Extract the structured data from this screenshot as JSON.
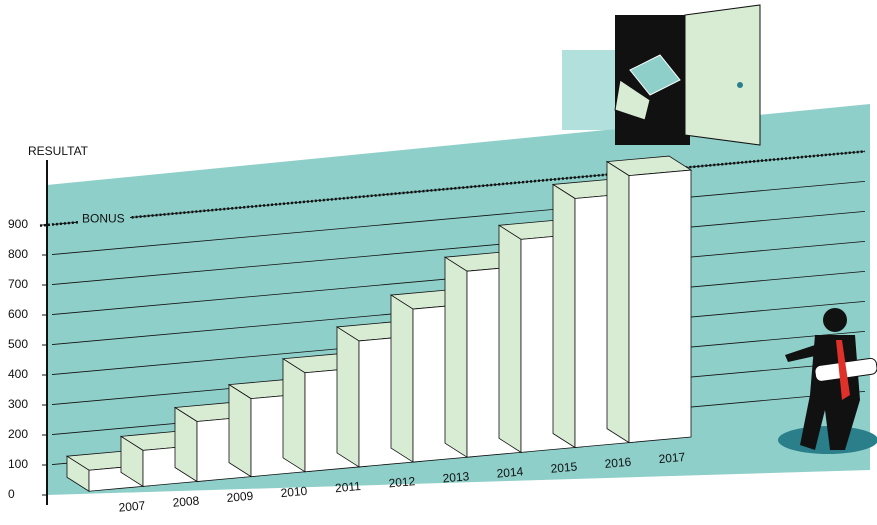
{
  "chart_data": {
    "type": "bar",
    "y_label": "RESULTAT",
    "categories": [
      "2007",
      "2008",
      "2009",
      "2010",
      "2011",
      "2012",
      "2013",
      "2014",
      "2015",
      "2016",
      "2017"
    ],
    "values": [
      70,
      120,
      200,
      260,
      330,
      420,
      510,
      620,
      710,
      830,
      890
    ],
    "color": "#ffffff",
    "top_color": "#d8ecd4",
    "background_color": "#8ecfc9",
    "ylim": [
      0,
      1000
    ],
    "yticks": [
      0,
      100,
      200,
      300,
      400,
      500,
      600,
      700,
      800,
      900
    ],
    "grid": true,
    "bonus": {
      "label": "BONUS",
      "value": 900
    }
  }
}
